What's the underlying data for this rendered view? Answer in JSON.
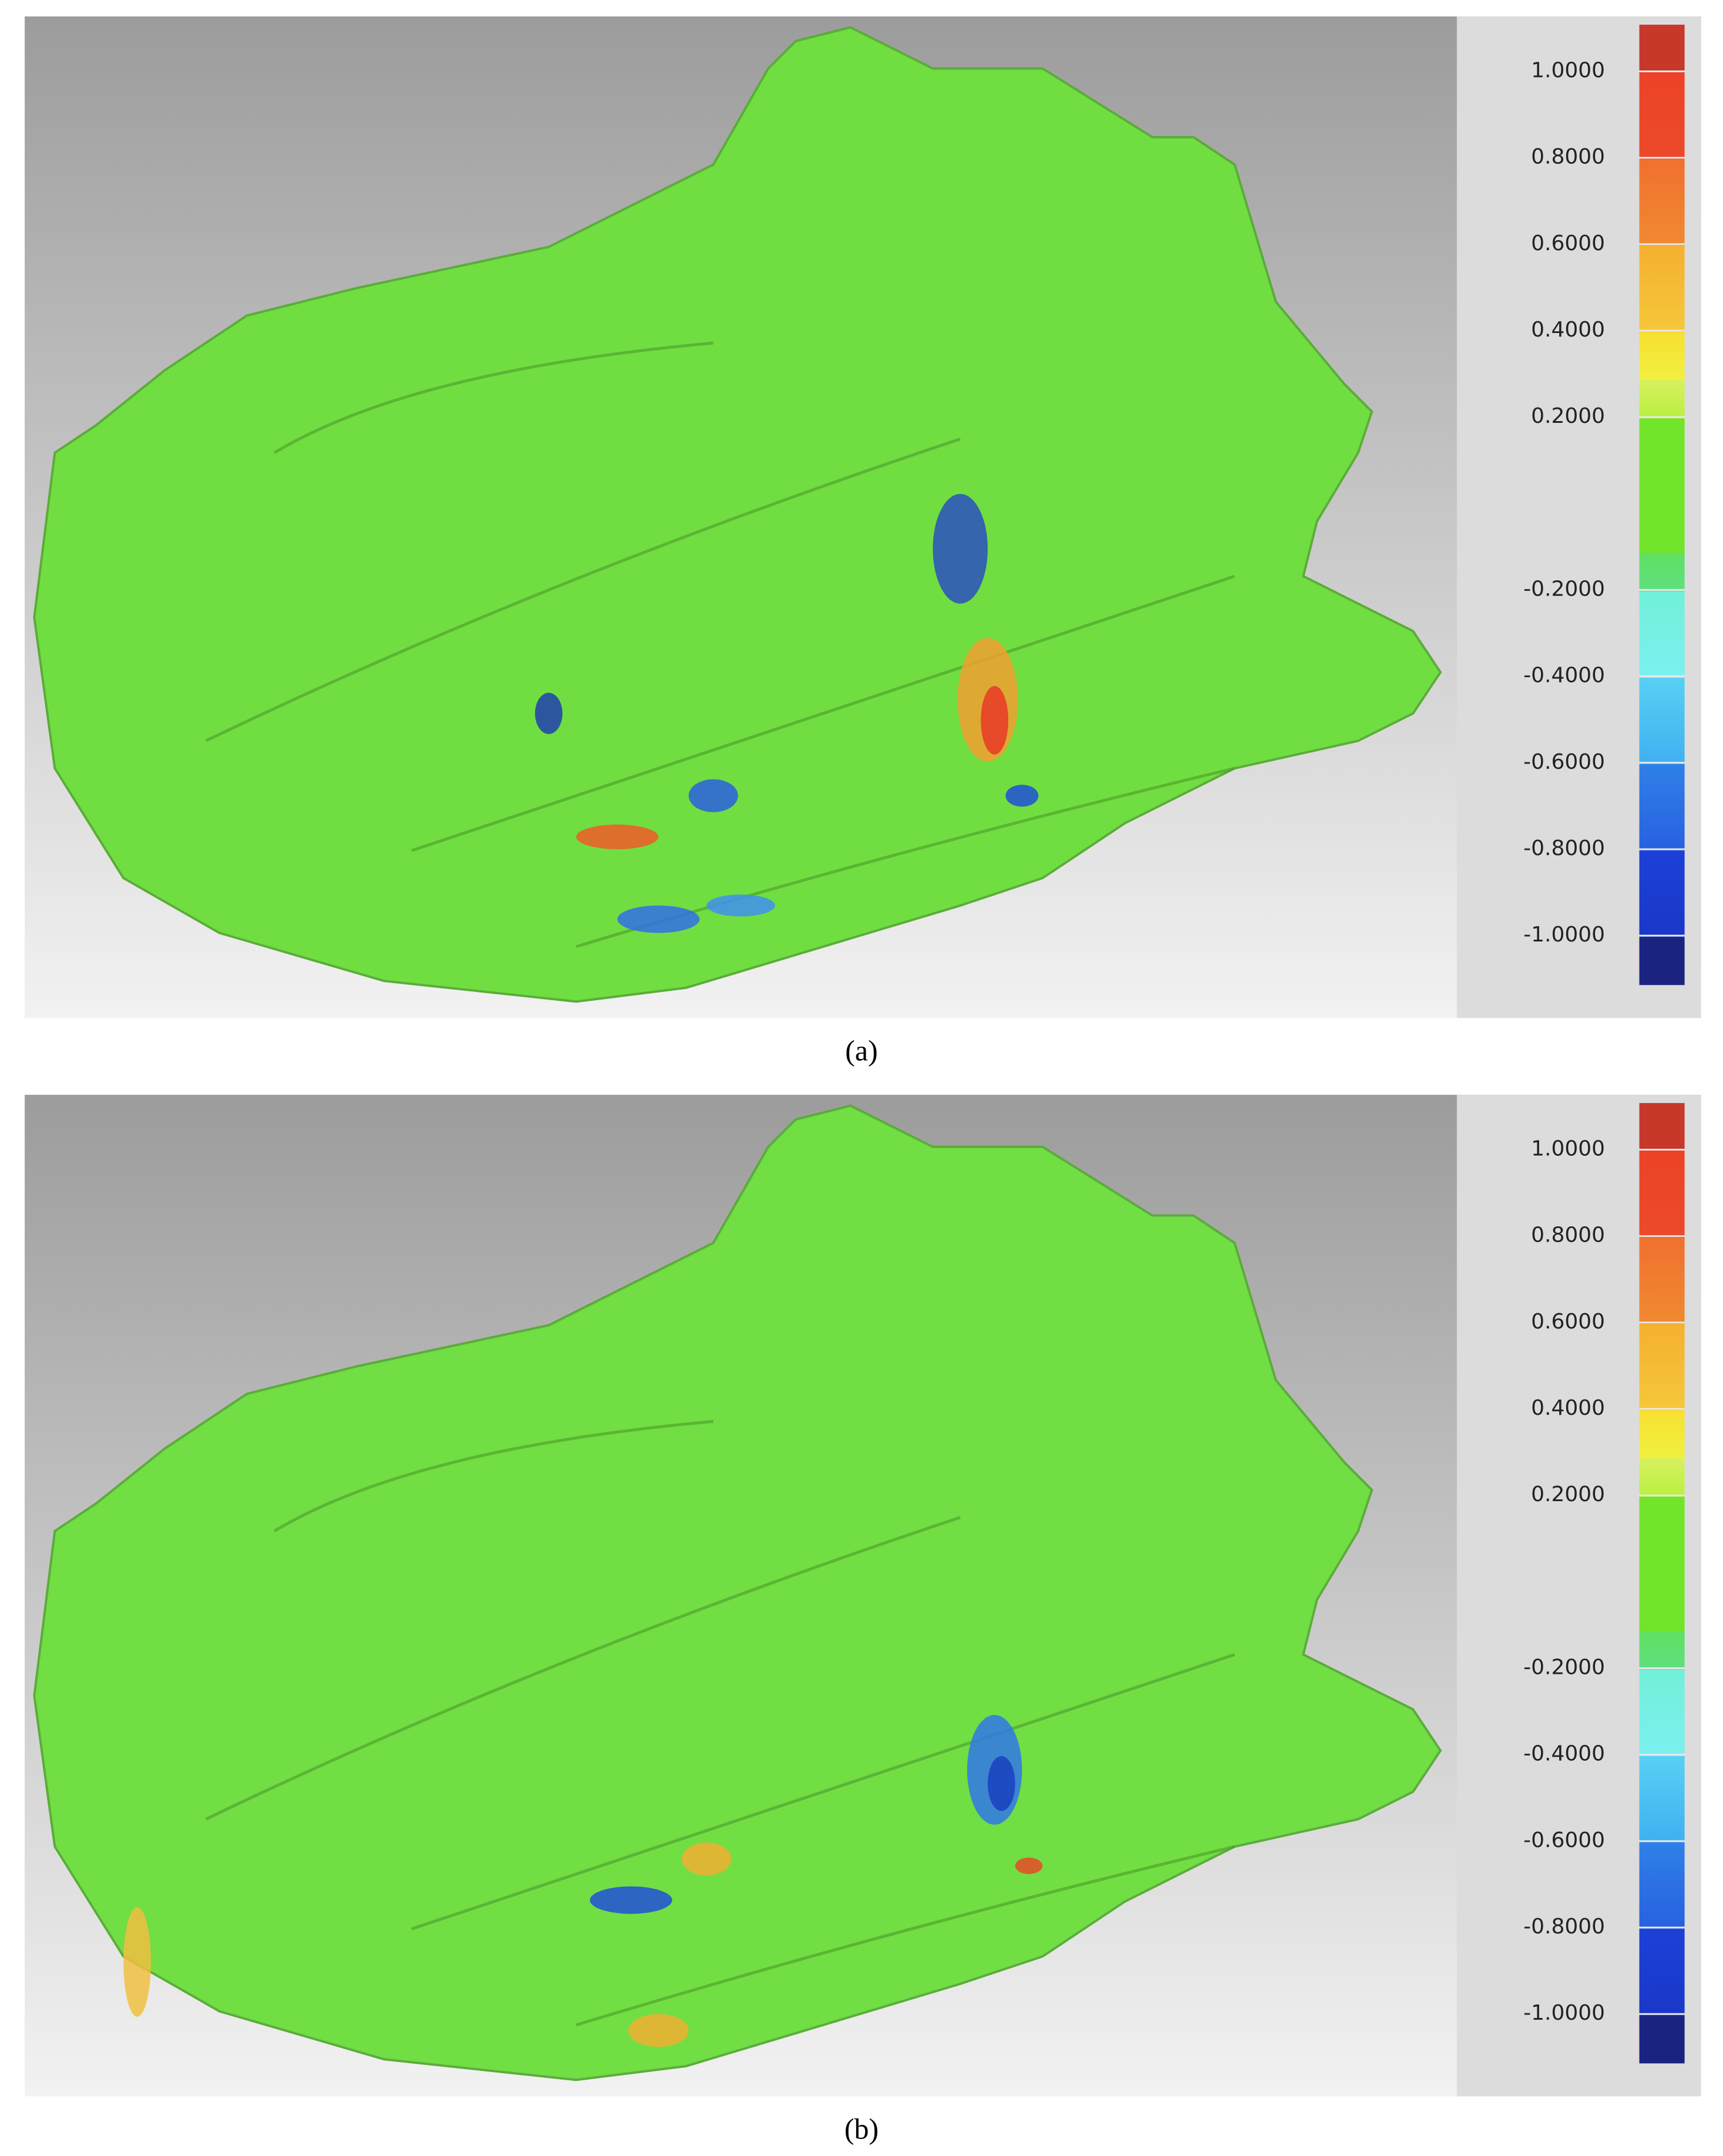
{
  "panels": [
    {
      "label": "(a)",
      "scale_labels": [
        "1.0000",
        "0.8000",
        "0.6000",
        "0.4000",
        "0.2000",
        "-0.2000",
        "-0.4000",
        "-0.6000",
        "-0.8000",
        "-1.0000"
      ]
    },
    {
      "label": "(b)",
      "scale_labels": [
        "1.0000",
        "0.8000",
        "0.6000",
        "0.4000",
        "0.2000",
        "-0.2000",
        "-0.4000",
        "-0.6000",
        "-0.8000",
        "-1.0000"
      ]
    }
  ]
}
